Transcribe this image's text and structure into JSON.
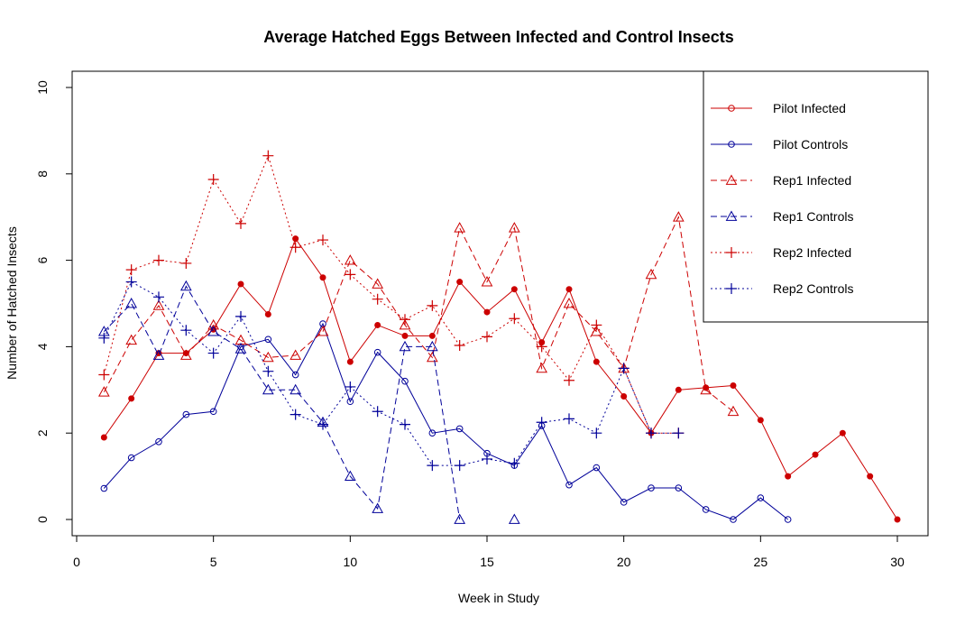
{
  "chart_data": {
    "type": "line",
    "title": "Average Hatched Eggs Between Infected and Control Insects",
    "xlabel": "Week in Study",
    "ylabel": "Number of Hatched Insects",
    "xlim": [
      0,
      31
    ],
    "ylim": [
      0,
      10
    ],
    "xticks": [
      0,
      5,
      10,
      15,
      20,
      25,
      30
    ],
    "yticks": [
      0,
      2,
      4,
      6,
      8,
      10
    ],
    "grid": false,
    "legend_position": "top-right",
    "series": [
      {
        "name": "Pilot Infected",
        "color": "#cc0000",
        "dash": "solid",
        "marker": "circle",
        "points": [
          [
            1,
            1.9
          ],
          [
            2,
            2.8
          ],
          [
            3,
            3.85
          ],
          [
            4,
            3.85
          ],
          [
            5,
            4.4
          ],
          [
            6,
            5.45
          ],
          [
            7,
            4.75
          ],
          [
            8,
            6.5
          ],
          [
            9,
            5.6
          ],
          [
            10,
            3.65
          ],
          [
            11,
            4.5
          ],
          [
            12,
            4.25
          ],
          [
            13,
            4.25
          ],
          [
            14,
            5.5
          ],
          [
            15,
            4.8
          ],
          [
            16,
            5.33
          ],
          [
            17,
            4.1
          ],
          [
            18,
            5.33
          ],
          [
            19,
            3.65
          ],
          [
            20,
            2.85
          ],
          [
            21,
            2.0
          ],
          [
            22,
            3.0
          ],
          [
            23,
            3.05
          ],
          [
            24,
            3.1
          ],
          [
            25,
            2.3
          ],
          [
            26,
            1.0
          ],
          [
            27,
            1.5
          ],
          [
            28,
            2.0
          ],
          [
            29,
            1.0
          ],
          [
            30,
            0.0
          ]
        ]
      },
      {
        "name": "Pilot Controls",
        "color": "#000099",
        "dash": "solid",
        "marker": "circle",
        "points": [
          [
            1,
            0.72
          ],
          [
            2,
            1.43
          ],
          [
            3,
            1.8
          ],
          [
            4,
            2.43
          ],
          [
            5,
            2.5
          ],
          [
            6,
            4.0
          ],
          [
            7,
            4.17
          ],
          [
            8,
            3.35
          ],
          [
            9,
            4.53
          ],
          [
            10,
            2.73
          ],
          [
            11,
            3.87
          ],
          [
            12,
            3.2
          ],
          [
            13,
            2.0
          ],
          [
            14,
            2.1
          ],
          [
            15,
            1.53
          ],
          [
            16,
            1.25
          ],
          [
            17,
            2.17
          ],
          [
            18,
            0.8
          ],
          [
            19,
            1.2
          ],
          [
            20,
            0.4
          ],
          [
            21,
            0.73
          ],
          [
            22,
            0.73
          ],
          [
            23,
            0.23
          ],
          [
            24,
            0.0
          ],
          [
            25,
            0.5
          ],
          [
            26,
            0.0
          ]
        ]
      },
      {
        "name": "Rep1 Infected",
        "color": "#cc0000",
        "dash": "dashed",
        "marker": "triangle",
        "points": [
          [
            1,
            2.95
          ],
          [
            2,
            4.15
          ],
          [
            3,
            4.95
          ],
          [
            4,
            3.8
          ],
          [
            5,
            4.5
          ],
          [
            6,
            4.15
          ],
          [
            7,
            3.75
          ],
          [
            8,
            3.8
          ],
          [
            9,
            4.35
          ],
          [
            10,
            6.0
          ],
          [
            11,
            5.45
          ],
          [
            12,
            4.5
          ],
          [
            13,
            3.75
          ],
          [
            14,
            6.75
          ],
          [
            15,
            5.5
          ],
          [
            16,
            6.75
          ],
          [
            17,
            3.5
          ],
          [
            18,
            5.0
          ],
          [
            19,
            4.35
          ],
          [
            20,
            3.5
          ],
          [
            21,
            5.67
          ],
          [
            22,
            7.0
          ],
          [
            23,
            3.0
          ],
          [
            24,
            2.5
          ]
        ]
      },
      {
        "name": "Rep1 Controls",
        "color": "#000099",
        "dash": "dashed",
        "marker": "triangle",
        "points": [
          [
            1,
            4.35
          ],
          [
            2,
            5.0
          ],
          [
            3,
            3.8
          ],
          [
            4,
            5.4
          ],
          [
            5,
            4.35
          ],
          [
            6,
            3.95
          ],
          [
            7,
            3.0
          ],
          [
            8,
            3.0
          ],
          [
            9,
            2.25
          ],
          [
            10,
            1.0
          ],
          [
            11,
            0.25
          ],
          [
            12,
            4.0
          ],
          [
            13,
            4.0
          ],
          [
            14,
            0.0
          ],
          [
            16,
            0.0
          ]
        ]
      },
      {
        "name": "Rep2 Infected",
        "color": "#cc0000",
        "dash": "dotted",
        "marker": "plus",
        "points": [
          [
            1,
            3.35
          ],
          [
            2,
            5.78
          ],
          [
            3,
            6.0
          ],
          [
            4,
            5.93
          ],
          [
            5,
            7.87
          ],
          [
            6,
            6.85
          ],
          [
            7,
            8.42
          ],
          [
            8,
            6.3
          ],
          [
            9,
            6.47
          ],
          [
            10,
            5.67
          ],
          [
            11,
            5.1
          ],
          [
            12,
            4.63
          ],
          [
            13,
            4.95
          ],
          [
            14,
            4.03
          ],
          [
            15,
            4.23
          ],
          [
            16,
            4.65
          ],
          [
            17,
            4.0
          ],
          [
            18,
            3.22
          ],
          [
            19,
            4.5
          ],
          [
            20,
            3.5
          ],
          [
            21,
            2.0
          ],
          [
            22,
            2.0
          ]
        ]
      },
      {
        "name": "Rep2 Controls",
        "color": "#000099",
        "dash": "dotted",
        "marker": "plus",
        "points": [
          [
            1,
            4.2
          ],
          [
            2,
            5.5
          ],
          [
            3,
            5.15
          ],
          [
            4,
            4.38
          ],
          [
            5,
            3.85
          ],
          [
            6,
            4.7
          ],
          [
            7,
            3.43
          ],
          [
            8,
            2.43
          ],
          [
            9,
            2.2
          ],
          [
            10,
            3.07
          ],
          [
            11,
            2.5
          ],
          [
            12,
            2.2
          ],
          [
            13,
            1.25
          ],
          [
            14,
            1.25
          ],
          [
            15,
            1.4
          ],
          [
            16,
            1.3
          ],
          [
            17,
            2.25
          ],
          [
            18,
            2.33
          ],
          [
            19,
            2.0
          ],
          [
            20,
            3.5
          ],
          [
            21,
            2.0
          ],
          [
            22,
            2.0
          ]
        ]
      }
    ]
  }
}
